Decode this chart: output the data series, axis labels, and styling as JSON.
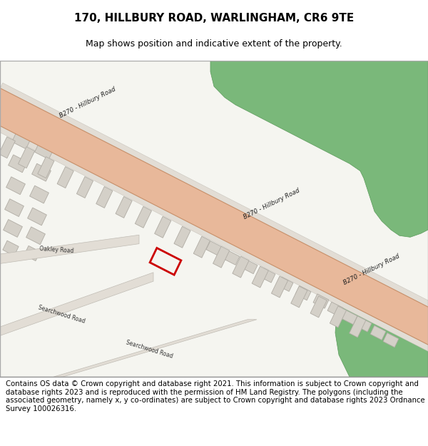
{
  "title": "170, HILLBURY ROAD, WARLINGHAM, CR6 9TE",
  "subtitle": "Map shows position and indicative extent of the property.",
  "footer": "Contains OS data © Crown copyright and database right 2021. This information is subject to Crown copyright and database rights 2023 and is reproduced with the permission of HM Land Registry. The polygons (including the associated geometry, namely x, y co-ordinates) are subject to Crown copyright and database rights 2023 Ordnance Survey 100026316.",
  "map_bg": "#f5f5f0",
  "road_color": "#e8b89a",
  "road_edge_color": "#c8906a",
  "green_color": "#7ab87a",
  "green_dark": "#5a9a5a",
  "building_color": "#d4d0c8",
  "building_edge": "#b0aca4",
  "plot_color": "#cc0000",
  "pavement_color": "#e2ddd5",
  "pavement_edge": "#c0bcb4",
  "map_border_color": "#aaaaaa",
  "title_fontsize": 11,
  "subtitle_fontsize": 9,
  "footer_fontsize": 7.3
}
